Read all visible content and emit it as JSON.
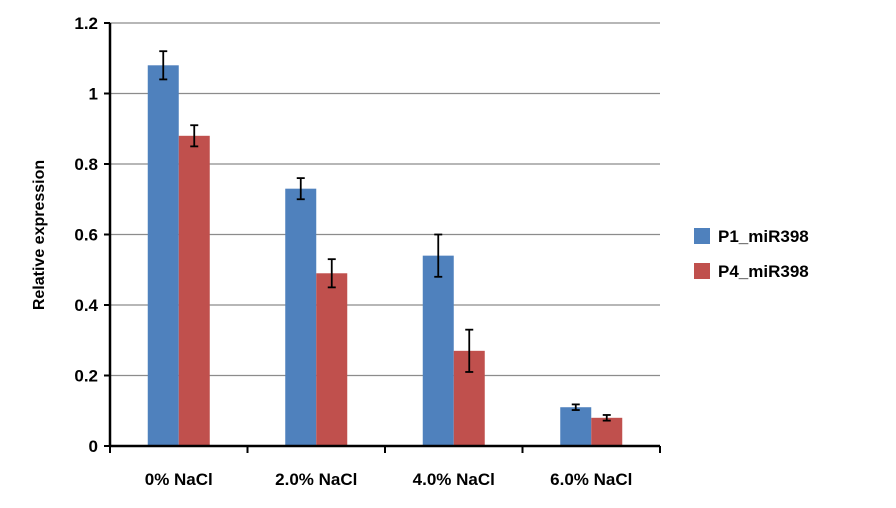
{
  "chart_data": {
    "type": "bar",
    "title": "",
    "xlabel": "",
    "ylabel": "Relative expression",
    "ylim": [
      0,
      1.2
    ],
    "yticks": [
      "0",
      "0.2",
      "0.4",
      "0.6",
      "0.8",
      "1",
      "1.2"
    ],
    "grid": true,
    "legend_position": "right",
    "categories": [
      "0% NaCl",
      "2.0% NaCl",
      "4.0% NaCl",
      "6.0% NaCl"
    ],
    "series": [
      {
        "name": "P1_miR398",
        "color": "#4F81BD",
        "values": [
          1.08,
          0.73,
          0.54,
          0.11
        ],
        "errors": [
          0.04,
          0.03,
          0.06,
          0.008
        ]
      },
      {
        "name": "P4_miR398",
        "color": "#C0504D",
        "values": [
          0.88,
          0.49,
          0.27,
          0.08
        ],
        "errors": [
          0.03,
          0.04,
          0.06,
          0.008
        ]
      }
    ]
  }
}
